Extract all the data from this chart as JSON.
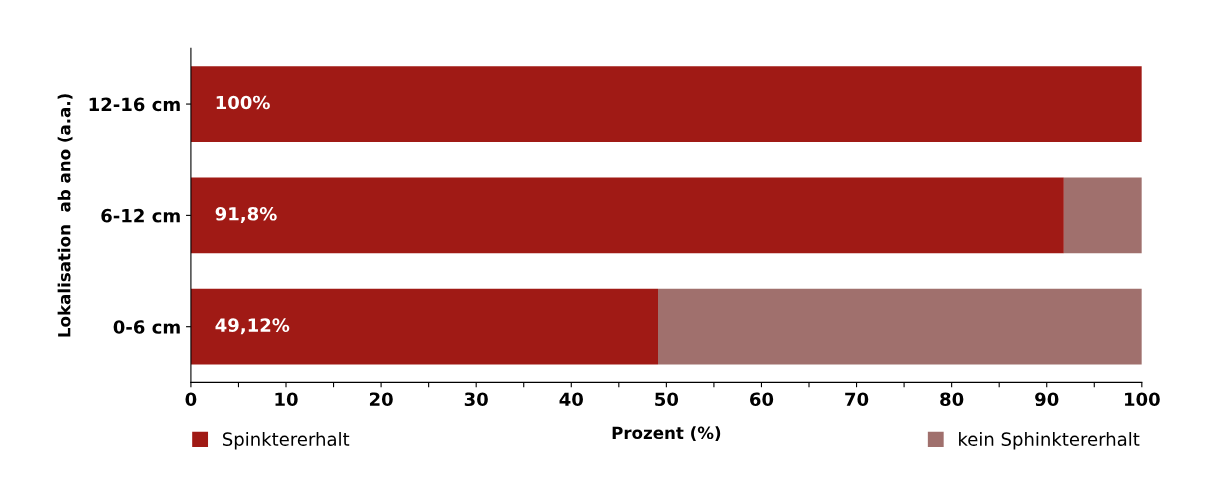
{
  "chart_data": {
    "type": "bar",
    "orientation": "horizontal",
    "stacked": true,
    "ylabel": "Lokalisation  ab ano (a.a.)",
    "xlabel": "Prozent (%)",
    "categories": [
      "12-16 cm",
      "6-12 cm",
      "0-6 cm"
    ],
    "series": [
      {
        "name": "Spinktererhalt",
        "color": "#a01a15",
        "values": [
          100,
          91.8,
          49.12
        ],
        "value_labels": [
          "100%",
          "91,8%",
          "49,12%"
        ]
      },
      {
        "name": "kein Sphinktererhalt",
        "color": "#a0706d",
        "values": [
          0,
          8.2,
          50.88
        ]
      }
    ],
    "xlim": [
      0,
      100
    ],
    "xticks": [
      0,
      {
        "value": 5,
        "label": null
      },
      10,
      {
        "value": 15,
        "label": null
      },
      20,
      {
        "value": 25,
        "label": null
      },
      30,
      {
        "value": 35,
        "label": null
      },
      40,
      {
        "value": 45,
        "label": null
      },
      50,
      {
        "value": 55,
        "label": null
      },
      60,
      {
        "value": 65,
        "label": null
      },
      70,
      {
        "value": 75,
        "label": null
      },
      80,
      {
        "value": 85,
        "label": null
      },
      90,
      {
        "value": 95,
        "label": null
      },
      100
    ],
    "grid": false,
    "legend": "bottom"
  }
}
